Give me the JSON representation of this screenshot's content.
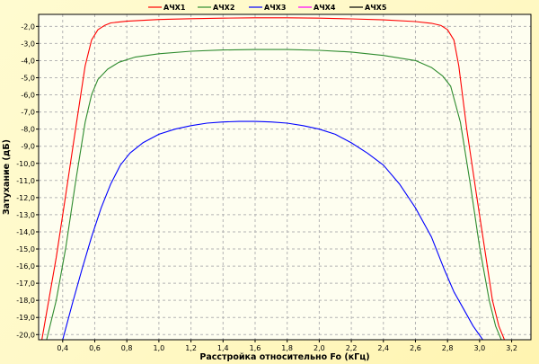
{
  "chart_data": {
    "type": "line",
    "xlabel": "Расстройка относительно Fo (кГц)",
    "ylabel": "Затухание (дБ)",
    "xlim": [
      0.25,
      3.32
    ],
    "ylim": [
      -20.3,
      -1.3
    ],
    "xticks": [
      {
        "v": 0.4,
        "label": "0,4"
      },
      {
        "v": 0.6,
        "label": "0,6"
      },
      {
        "v": 0.8,
        "label": "0,8"
      },
      {
        "v": 1.0,
        "label": "1,0"
      },
      {
        "v": 1.2,
        "label": "1,2"
      },
      {
        "v": 1.4,
        "label": "1,4"
      },
      {
        "v": 1.6,
        "label": "1,6"
      },
      {
        "v": 1.8,
        "label": "1,8"
      },
      {
        "v": 2.0,
        "label": "2,0"
      },
      {
        "v": 2.2,
        "label": "2,2"
      },
      {
        "v": 2.4,
        "label": "2,4"
      },
      {
        "v": 2.6,
        "label": "2,6"
      },
      {
        "v": 2.8,
        "label": "2,8"
      },
      {
        "v": 3.0,
        "label": "3,0"
      },
      {
        "v": 3.2,
        "label": "3,2"
      }
    ],
    "yticks": [
      {
        "v": -2,
        "label": "-2,0"
      },
      {
        "v": -3,
        "label": "-3,0"
      },
      {
        "v": -4,
        "label": "-4,0"
      },
      {
        "v": -5,
        "label": "-5,0"
      },
      {
        "v": -6,
        "label": "-6,0"
      },
      {
        "v": -7,
        "label": "-7,0"
      },
      {
        "v": -8,
        "label": "-8,0"
      },
      {
        "v": -9,
        "label": "-9,0"
      },
      {
        "v": -10,
        "label": "-10,0"
      },
      {
        "v": -11,
        "label": "-11,0"
      },
      {
        "v": -12,
        "label": "-12,0"
      },
      {
        "v": -13,
        "label": "-13,0"
      },
      {
        "v": -14,
        "label": "-14,0"
      },
      {
        "v": -15,
        "label": "-15,0"
      },
      {
        "v": -16,
        "label": "-16,0"
      },
      {
        "v": -17,
        "label": "-17,0"
      },
      {
        "v": -18,
        "label": "-18,0"
      },
      {
        "v": -19,
        "label": "-19,0"
      },
      {
        "v": -20,
        "label": "-20,0"
      }
    ],
    "grid": true,
    "legend_position": "top",
    "colors": {
      "background": "#fffbd0",
      "plot_background": "#fefef0",
      "grid": "#b4b4b4"
    },
    "series": [
      {
        "name": "АЧХ1",
        "color": "#ff0000",
        "x": [
          0.27,
          0.36,
          0.42,
          0.48,
          0.54,
          0.58,
          0.62,
          0.66,
          0.7,
          0.8,
          1.0,
          1.2,
          1.4,
          1.6,
          1.8,
          2.0,
          2.2,
          2.4,
          2.6,
          2.7,
          2.76,
          2.8,
          2.84,
          2.87,
          2.92,
          2.98,
          3.04,
          3.08,
          3.12,
          3.155
        ],
        "y": [
          -20.3,
          -15.5,
          -11.8,
          -8.0,
          -4.3,
          -2.8,
          -2.2,
          -1.95,
          -1.8,
          -1.7,
          -1.6,
          -1.55,
          -1.52,
          -1.5,
          -1.5,
          -1.52,
          -1.56,
          -1.62,
          -1.72,
          -1.82,
          -1.95,
          -2.2,
          -2.8,
          -4.3,
          -8.0,
          -11.8,
          -15.5,
          -18.0,
          -19.5,
          -20.3
        ]
      },
      {
        "name": "АЧХ2",
        "color": "#2e8b2e",
        "x": [
          0.3,
          0.36,
          0.42,
          0.48,
          0.54,
          0.58,
          0.62,
          0.68,
          0.75,
          0.85,
          1.0,
          1.2,
          1.4,
          1.6,
          1.8,
          2.0,
          2.2,
          2.4,
          2.6,
          2.7,
          2.77,
          2.82,
          2.88,
          2.94,
          3.0,
          3.06,
          3.1,
          3.135
        ],
        "y": [
          -20.3,
          -18.0,
          -14.9,
          -11.1,
          -7.6,
          -6.0,
          -5.1,
          -4.5,
          -4.1,
          -3.8,
          -3.6,
          -3.45,
          -3.38,
          -3.35,
          -3.35,
          -3.4,
          -3.5,
          -3.7,
          -4.0,
          -4.4,
          -4.9,
          -5.5,
          -7.6,
          -11.1,
          -14.9,
          -18.0,
          -19.5,
          -20.3
        ]
      },
      {
        "name": "АЧХ3",
        "color": "#0000ff",
        "x": [
          0.4,
          0.46,
          0.52,
          0.58,
          0.64,
          0.7,
          0.76,
          0.82,
          0.9,
          1.0,
          1.1,
          1.2,
          1.3,
          1.4,
          1.5,
          1.6,
          1.7,
          1.8,
          1.9,
          2.0,
          2.1,
          2.2,
          2.3,
          2.4,
          2.5,
          2.6,
          2.7,
          2.78,
          2.84,
          2.9,
          2.96,
          3.02
        ],
        "y": [
          -20.3,
          -18.2,
          -16.2,
          -14.3,
          -12.6,
          -11.2,
          -10.1,
          -9.4,
          -8.8,
          -8.3,
          -8.0,
          -7.8,
          -7.65,
          -7.58,
          -7.55,
          -7.55,
          -7.58,
          -7.65,
          -7.8,
          -8.0,
          -8.3,
          -8.8,
          -9.4,
          -10.1,
          -11.2,
          -12.6,
          -14.3,
          -16.2,
          -17.5,
          -18.5,
          -19.5,
          -20.3
        ]
      },
      {
        "name": "АЧХ4",
        "color": "#ff00ff",
        "x": [],
        "y": []
      },
      {
        "name": "АЧХ5",
        "color": "#000000",
        "x": [],
        "y": []
      }
    ]
  }
}
